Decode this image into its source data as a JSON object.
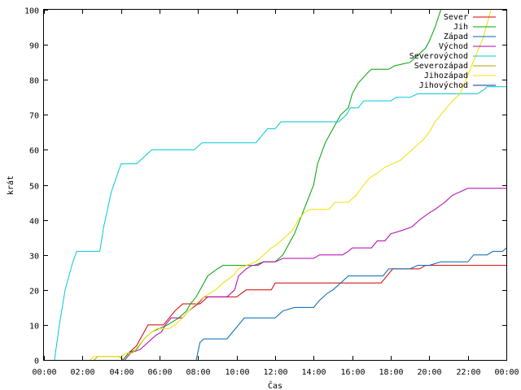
{
  "chart_data": {
    "type": "line",
    "title": "",
    "xlabel": "Čas",
    "ylabel": "krát",
    "xlim": [
      0,
      24
    ],
    "ylim": [
      0,
      100
    ],
    "grid": false,
    "legend_position": "top-right",
    "x_ticks": [
      {
        "value": 0,
        "label": "00:00"
      },
      {
        "value": 2,
        "label": "02:00"
      },
      {
        "value": 4,
        "label": "04:00"
      },
      {
        "value": 6,
        "label": "06:00"
      },
      {
        "value": 8,
        "label": "08:00"
      },
      {
        "value": 10,
        "label": "10:00"
      },
      {
        "value": 12,
        "label": "12:00"
      },
      {
        "value": 14,
        "label": "14:00"
      },
      {
        "value": 16,
        "label": "16:00"
      },
      {
        "value": 18,
        "label": "18:00"
      },
      {
        "value": 20,
        "label": "20:00"
      },
      {
        "value": 22,
        "label": "22:00"
      },
      {
        "value": 24,
        "label": "00:00"
      }
    ],
    "y_ticks": [
      0,
      10,
      20,
      30,
      40,
      50,
      60,
      70,
      80,
      90,
      100
    ],
    "series": [
      {
        "name": "Sever",
        "color": "#d00000",
        "points": [
          [
            4.1,
            0
          ],
          [
            4.4,
            2
          ],
          [
            4.8,
            4
          ],
          [
            5.0,
            6
          ],
          [
            5.2,
            8
          ],
          [
            5.4,
            10
          ],
          [
            6.2,
            10
          ],
          [
            6.5,
            12
          ],
          [
            6.8,
            14
          ],
          [
            7.2,
            16
          ],
          [
            8.1,
            16
          ],
          [
            8.5,
            18
          ],
          [
            10.0,
            18
          ],
          [
            10.5,
            20
          ],
          [
            11.8,
            20
          ],
          [
            12.0,
            22
          ],
          [
            17.5,
            22
          ],
          [
            17.8,
            24
          ],
          [
            18.1,
            26
          ],
          [
            19.5,
            26
          ],
          [
            19.8,
            27
          ],
          [
            24,
            27
          ]
        ]
      },
      {
        "name": "Jih",
        "color": "#00a000",
        "points": [
          [
            4.1,
            0
          ],
          [
            4.4,
            2
          ],
          [
            4.8,
            3
          ],
          [
            5.2,
            6
          ],
          [
            5.6,
            8
          ],
          [
            6.0,
            9
          ],
          [
            6.4,
            10
          ],
          [
            7.0,
            12
          ],
          [
            7.4,
            14
          ],
          [
            7.6,
            16
          ],
          [
            7.9,
            18
          ],
          [
            8.2,
            21
          ],
          [
            8.5,
            24
          ],
          [
            9.0,
            26
          ],
          [
            9.3,
            27
          ],
          [
            10.9,
            27
          ],
          [
            11.4,
            28
          ],
          [
            12.0,
            28
          ],
          [
            12.4,
            30
          ],
          [
            13.0,
            36
          ],
          [
            13.5,
            43
          ],
          [
            14.0,
            50
          ],
          [
            14.2,
            56
          ],
          [
            14.6,
            62
          ],
          [
            15.0,
            66
          ],
          [
            15.4,
            70
          ],
          [
            15.8,
            72
          ],
          [
            16.0,
            76
          ],
          [
            16.3,
            79
          ],
          [
            16.8,
            82
          ],
          [
            17.0,
            83
          ],
          [
            17.9,
            83
          ],
          [
            18.2,
            84
          ],
          [
            19.0,
            85
          ],
          [
            19.4,
            87
          ],
          [
            19.8,
            89
          ],
          [
            20.0,
            91
          ],
          [
            20.3,
            95
          ],
          [
            20.6,
            100
          ]
        ]
      },
      {
        "name": "Západ",
        "color": "#0066b3",
        "points": [
          [
            7.9,
            0
          ],
          [
            8.1,
            5
          ],
          [
            8.3,
            6
          ],
          [
            9.5,
            6
          ],
          [
            9.8,
            8
          ],
          [
            10.1,
            10
          ],
          [
            10.4,
            12
          ],
          [
            12.0,
            12
          ],
          [
            12.4,
            14
          ],
          [
            13.0,
            15
          ],
          [
            14.0,
            15
          ],
          [
            14.3,
            17
          ],
          [
            14.7,
            19
          ],
          [
            15.0,
            20
          ],
          [
            15.4,
            22
          ],
          [
            15.8,
            24
          ],
          [
            17.6,
            24
          ],
          [
            17.9,
            26
          ],
          [
            19.0,
            26
          ],
          [
            19.4,
            27
          ],
          [
            20.0,
            27
          ],
          [
            20.6,
            28
          ],
          [
            22.0,
            28
          ],
          [
            22.3,
            30
          ],
          [
            23.0,
            30
          ],
          [
            23.3,
            31
          ],
          [
            23.8,
            31
          ],
          [
            24,
            32
          ]
        ]
      },
      {
        "name": "Východ",
        "color": "#b000b0",
        "points": [
          [
            4.2,
            0
          ],
          [
            4.5,
            2
          ],
          [
            5.0,
            3
          ],
          [
            5.4,
            5
          ],
          [
            5.8,
            7
          ],
          [
            6.1,
            8
          ],
          [
            6.3,
            10
          ],
          [
            6.6,
            12
          ],
          [
            7.2,
            12
          ],
          [
            7.5,
            14
          ],
          [
            8.0,
            16
          ],
          [
            8.3,
            18
          ],
          [
            9.5,
            18
          ],
          [
            9.9,
            20
          ],
          [
            10.1,
            24
          ],
          [
            10.5,
            26
          ],
          [
            10.8,
            27
          ],
          [
            11.1,
            27
          ],
          [
            11.4,
            28
          ],
          [
            12.0,
            28
          ],
          [
            12.4,
            29
          ],
          [
            14.0,
            29
          ],
          [
            14.3,
            30
          ],
          [
            15.5,
            30
          ],
          [
            15.8,
            31
          ],
          [
            16.0,
            32
          ],
          [
            17.0,
            32
          ],
          [
            17.3,
            34
          ],
          [
            17.7,
            34
          ],
          [
            18.0,
            36
          ],
          [
            18.6,
            37
          ],
          [
            19.1,
            38
          ],
          [
            19.5,
            40
          ],
          [
            20.0,
            42
          ],
          [
            20.3,
            43
          ],
          [
            20.8,
            45
          ],
          [
            21.2,
            47
          ],
          [
            21.6,
            48
          ],
          [
            22.0,
            49
          ],
          [
            24,
            49
          ]
        ]
      },
      {
        "name": "Severovýchod",
        "color": "#00c8d8",
        "points": [
          [
            0.55,
            0
          ],
          [
            0.8,
            10
          ],
          [
            1.1,
            20
          ],
          [
            1.5,
            28
          ],
          [
            1.7,
            31
          ],
          [
            2.9,
            31
          ],
          [
            3.1,
            38
          ],
          [
            3.5,
            48
          ],
          [
            4.0,
            56
          ],
          [
            4.8,
            56
          ],
          [
            5.2,
            58
          ],
          [
            5.6,
            60
          ],
          [
            7.8,
            60
          ],
          [
            8.2,
            62
          ],
          [
            11.0,
            62
          ],
          [
            11.3,
            64
          ],
          [
            11.6,
            66
          ],
          [
            12.0,
            66
          ],
          [
            12.3,
            68
          ],
          [
            15.3,
            68
          ],
          [
            15.7,
            70
          ],
          [
            15.9,
            72
          ],
          [
            16.3,
            72
          ],
          [
            16.6,
            74
          ],
          [
            18.0,
            74
          ],
          [
            18.3,
            75
          ],
          [
            19.0,
            75
          ],
          [
            19.4,
            76
          ],
          [
            22.5,
            76
          ],
          [
            22.8,
            77
          ],
          [
            23.0,
            78
          ],
          [
            24,
            78
          ]
        ]
      },
      {
        "name": "Severozápad",
        "color": "#b8a000",
        "points": [
          [
            2.6,
            0
          ],
          [
            2.8,
            1
          ],
          [
            3.9,
            1
          ],
          [
            4.1,
            0
          ]
        ]
      },
      {
        "name": "Jihozápad",
        "color": "#f0e000",
        "points": [
          [
            2.4,
            0
          ],
          [
            2.6,
            1
          ],
          [
            4.0,
            1
          ],
          [
            4.3,
            2
          ],
          [
            4.6,
            2
          ],
          [
            4.9,
            4
          ],
          [
            5.2,
            6
          ],
          [
            5.6,
            8
          ],
          [
            5.9,
            9
          ],
          [
            6.5,
            9
          ],
          [
            6.8,
            10
          ],
          [
            7.2,
            12
          ],
          [
            7.5,
            14
          ],
          [
            7.9,
            16
          ],
          [
            8.3,
            18
          ],
          [
            8.9,
            20
          ],
          [
            9.3,
            22
          ],
          [
            9.8,
            24
          ],
          [
            10.1,
            26
          ],
          [
            10.5,
            27
          ],
          [
            11.0,
            28
          ],
          [
            11.4,
            30
          ],
          [
            11.8,
            32
          ],
          [
            12.1,
            33
          ],
          [
            12.5,
            35
          ],
          [
            12.9,
            37
          ],
          [
            13.2,
            40
          ],
          [
            13.5,
            42
          ],
          [
            13.8,
            43
          ],
          [
            14.8,
            43
          ],
          [
            15.1,
            45
          ],
          [
            15.8,
            45
          ],
          [
            16.2,
            47
          ],
          [
            16.6,
            50
          ],
          [
            16.9,
            52
          ],
          [
            17.2,
            53
          ],
          [
            17.7,
            55
          ],
          [
            18.1,
            56
          ],
          [
            18.5,
            57
          ],
          [
            18.9,
            59
          ],
          [
            19.3,
            61
          ],
          [
            19.7,
            63
          ],
          [
            20.0,
            65
          ],
          [
            20.3,
            68
          ],
          [
            20.6,
            70
          ],
          [
            20.9,
            72
          ],
          [
            21.2,
            74
          ],
          [
            21.6,
            76
          ],
          [
            21.9,
            80
          ],
          [
            22.2,
            84
          ],
          [
            22.5,
            88
          ],
          [
            22.8,
            92
          ],
          [
            23.0,
            96
          ],
          [
            23.2,
            100
          ]
        ]
      },
      {
        "name": "Jihovýchod",
        "color": "#003090",
        "points": []
      }
    ]
  }
}
